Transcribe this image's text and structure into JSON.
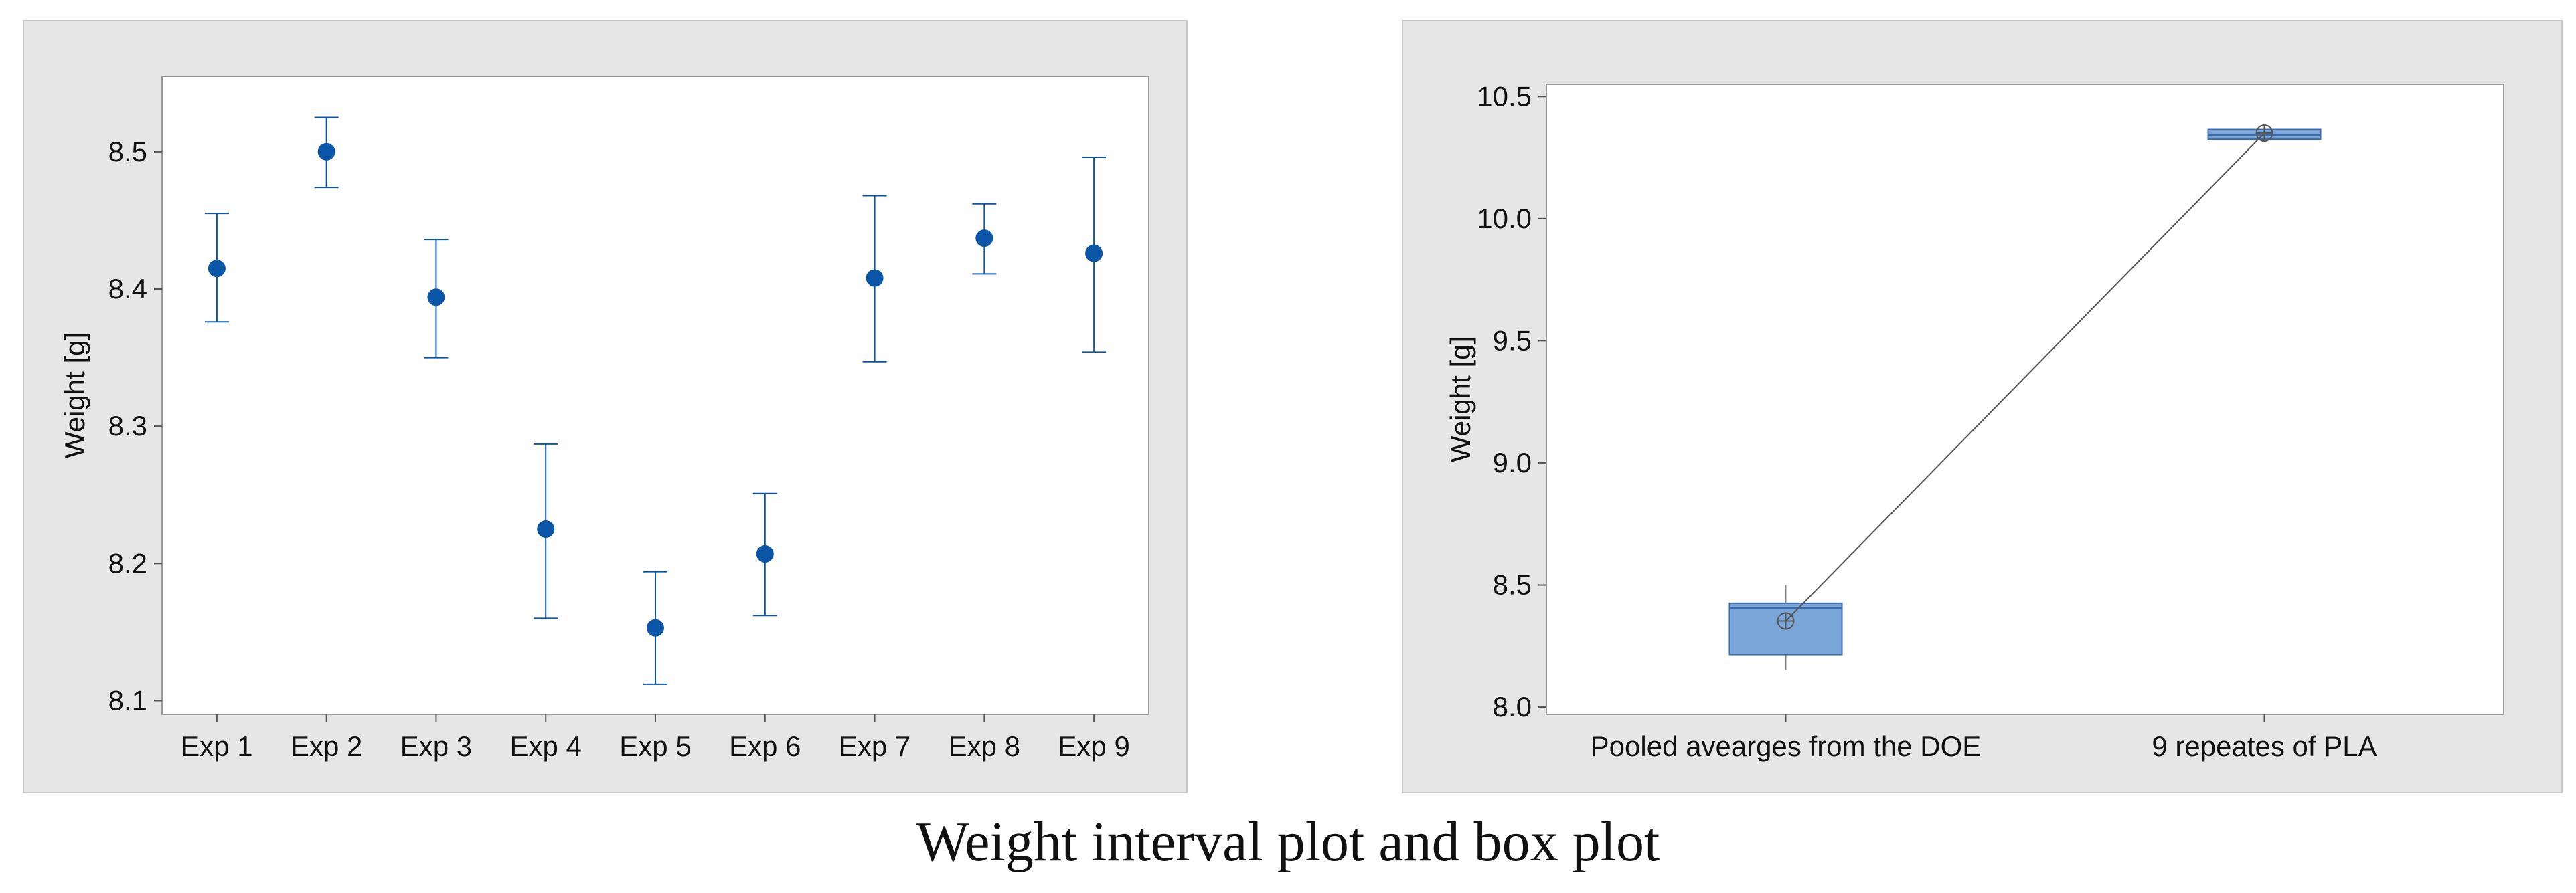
{
  "caption": "Weight interval plot and box plot",
  "colors": {
    "interval": "#0b55a6",
    "box_fill": "#7ba6da",
    "box_stroke": "#3c6aa6",
    "frame": "#9a9a9a",
    "panel": "#e6e6e6"
  },
  "chart_data": [
    {
      "type": "interval",
      "title": "",
      "xlabel": "",
      "ylabel": "Weight [g]",
      "ylim": [
        8.09,
        8.555
      ],
      "yticks": [
        "8.1",
        "8.2",
        "8.3",
        "8.4",
        "8.5"
      ],
      "categories": [
        "Exp 1",
        "Exp 2",
        "Exp 3",
        "Exp 4",
        "Exp 5",
        "Exp 6",
        "Exp 7",
        "Exp 8",
        "Exp 9"
      ],
      "means": [
        8.415,
        8.5,
        8.394,
        8.225,
        8.153,
        8.207,
        8.408,
        8.437,
        8.426
      ],
      "lower": [
        8.376,
        8.474,
        8.35,
        8.16,
        8.112,
        8.162,
        8.347,
        8.411,
        8.354
      ],
      "upper": [
        8.455,
        8.525,
        8.436,
        8.287,
        8.194,
        8.251,
        8.468,
        8.462,
        8.496
      ]
    },
    {
      "type": "box",
      "title": "",
      "xlabel": "",
      "ylabel": "Weight [g]",
      "ylim": [
        7.97,
        10.55
      ],
      "yticks": [
        "8.0",
        "8.5",
        "9.0",
        "9.5",
        "10.0",
        "10.5"
      ],
      "categories": [
        "Pooled avearges from the DOE",
        "9 repeates of PLA"
      ],
      "boxes": [
        {
          "min": 8.153,
          "q1": 8.215,
          "median": 8.405,
          "q3": 8.425,
          "max": 8.5,
          "mean": 8.352
        },
        {
          "min": 10.32,
          "q1": 10.325,
          "median": 10.342,
          "q3": 10.365,
          "max": 10.375,
          "mean": 10.35
        }
      ],
      "mean_connect_line": true
    }
  ]
}
